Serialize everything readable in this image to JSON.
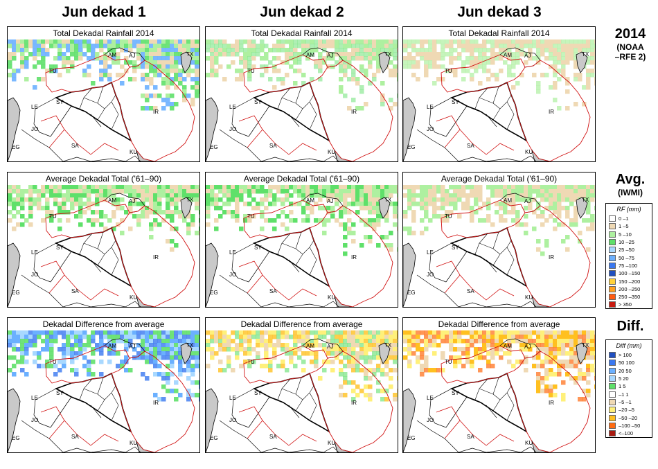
{
  "columns": [
    "Jun dekad 1",
    "Jun dekad 2",
    "Jun dekad 3"
  ],
  "rows": [
    {
      "panel_title": "Total Dekadal Rainfall 2014",
      "side_big": "2014",
      "side_small_1": "(NOAA",
      "side_small_2": "–RFE 2)"
    },
    {
      "panel_title": "Average Dekadal Total ('61–90)",
      "side_big": "Avg.",
      "side_small_1": "(IWMI)",
      "side_small_2": ""
    },
    {
      "panel_title": "Dekadal Difference from average",
      "side_big": "Diff.",
      "side_small_1": "",
      "side_small_2": ""
    }
  ],
  "map_labels": [
    "AM",
    "AJ",
    "TX",
    "TU",
    "SY",
    "IR",
    "LE",
    "JO",
    "EG",
    "SA",
    "KU"
  ],
  "rf_legend": {
    "title": "RF (mm)",
    "items": [
      {
        "label": "0 –1",
        "color": "#ffffff"
      },
      {
        "label": "1 –5",
        "color": "#efd9b4"
      },
      {
        "label": "5 –10",
        "color": "#aef0a0"
      },
      {
        "label": "10 –25",
        "color": "#5fe06a"
      },
      {
        "label": "25 –50",
        "color": "#a8d8ff"
      },
      {
        "label": "50 –75",
        "color": "#6bb0ff"
      },
      {
        "label": "75 –100",
        "color": "#3a78f0"
      },
      {
        "label": "100 –150",
        "color": "#1f4fc0"
      },
      {
        "label": "150 –200",
        "color": "#ffd23a"
      },
      {
        "label": "200 –250",
        "color": "#ffa020"
      },
      {
        "label": "250 –350",
        "color": "#ff5a10"
      },
      {
        "label": "> 350",
        "color": "#c81a10"
      }
    ]
  },
  "diff_legend": {
    "title": "Diff (mm)",
    "items": [
      {
        "label": "> 100",
        "color": "#1f4fc0"
      },
      {
        "label": "50  100",
        "color": "#3a78f0"
      },
      {
        "label": "20  50",
        "color": "#6bb0ff"
      },
      {
        "label": "5  20",
        "color": "#a8d8ff"
      },
      {
        "label": "1  5",
        "color": "#5fe06a"
      },
      {
        "label": "–1  1",
        "color": "#ffffff"
      },
      {
        "label": "–5  –1",
        "color": "#efd9b4"
      },
      {
        "label": "–20  –5",
        "color": "#fff07a"
      },
      {
        "label": "–50  –20",
        "color": "#ffc020"
      },
      {
        "label": "–100  –50",
        "color": "#ff6a10"
      },
      {
        "label": "<–100",
        "color": "#a81a10"
      }
    ]
  },
  "panels": [
    {
      "row": 0,
      "col": 0,
      "fill": [
        {
          "c": "#aef0a0",
          "o": 1
        },
        {
          "c": "#5fe06a",
          "o": 0.9
        },
        {
          "c": "#6bb0ff",
          "o": 0.9
        },
        {
          "c": "#efd9b4",
          "o": 1
        }
      ]
    },
    {
      "row": 0,
      "col": 1,
      "fill": [
        {
          "c": "#aef0a0",
          "o": 1
        },
        {
          "c": "#5fe06a",
          "o": 0.5
        },
        {
          "c": "#efd9b4",
          "o": 1
        }
      ]
    },
    {
      "row": 0,
      "col": 2,
      "fill": [
        {
          "c": "#efd9b4",
          "o": 1
        },
        {
          "c": "#aef0a0",
          "o": 0.7
        }
      ]
    },
    {
      "row": 1,
      "col": 0,
      "fill": [
        {
          "c": "#5fe06a",
          "o": 1
        },
        {
          "c": "#aef0a0",
          "o": 1
        },
        {
          "c": "#efd9b4",
          "o": 1
        }
      ]
    },
    {
      "row": 1,
      "col": 1,
      "fill": [
        {
          "c": "#5fe06a",
          "o": 1
        },
        {
          "c": "#aef0a0",
          "o": 1
        },
        {
          "c": "#efd9b4",
          "o": 1
        }
      ]
    },
    {
      "row": 1,
      "col": 2,
      "fill": [
        {
          "c": "#aef0a0",
          "o": 1
        },
        {
          "c": "#efd9b4",
          "o": 1
        }
      ]
    },
    {
      "row": 2,
      "col": 0,
      "fill": [
        {
          "c": "#6bb0ff",
          "o": 1
        },
        {
          "c": "#3a78f0",
          "o": 0.8
        },
        {
          "c": "#5fe06a",
          "o": 0.9
        },
        {
          "c": "#a8d8ff",
          "o": 1
        }
      ]
    },
    {
      "row": 2,
      "col": 1,
      "fill": [
        {
          "c": "#fff07a",
          "o": 1
        },
        {
          "c": "#ffc020",
          "o": 0.8
        },
        {
          "c": "#efd9b4",
          "o": 1
        },
        {
          "c": "#5fe06a",
          "o": 0.6
        }
      ]
    },
    {
      "row": 2,
      "col": 2,
      "fill": [
        {
          "c": "#ffc020",
          "o": 1
        },
        {
          "c": "#fff07a",
          "o": 1
        },
        {
          "c": "#ff6a10",
          "o": 0.7
        },
        {
          "c": "#efd9b4",
          "o": 1
        }
      ]
    }
  ]
}
